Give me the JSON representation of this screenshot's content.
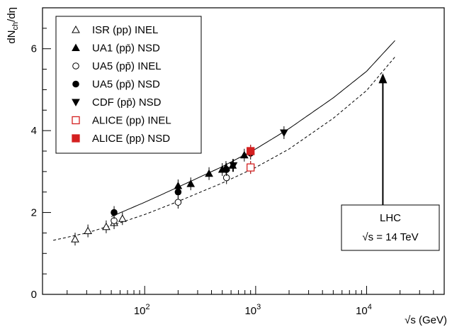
{
  "chart_data": {
    "type": "scatter",
    "title": "",
    "xlabel": "√s (GeV)",
    "ylabel": "dN_ch/dη",
    "xscale": "log",
    "xlim": [
      12,
      50000
    ],
    "ylim": [
      0,
      7
    ],
    "x_tick_labels": [
      "10^2",
      "10^3",
      "10^4"
    ],
    "y_tick_labels": [
      "0",
      "2",
      "4",
      "6"
    ],
    "legend_position": "top-left",
    "series": [
      {
        "name": "ISR (pp) INEL",
        "marker": "triangle-up-open",
        "color": "#000000",
        "x": [
          23.6,
          30.8,
          45,
          53,
          63
        ],
        "y": [
          1.35,
          1.55,
          1.65,
          1.75,
          1.85
        ]
      },
      {
        "name": "UA1 (pp̄) NSD",
        "marker": "triangle-up-filled",
        "color": "#000000",
        "x": [
          200,
          260,
          380,
          500,
          540,
          620,
          790,
          900
        ],
        "y": [
          2.65,
          2.7,
          2.95,
          3.05,
          3.1,
          3.15,
          3.4,
          3.5
        ]
      },
      {
        "name": "UA5 (pp̄) INEL",
        "marker": "circle-open",
        "color": "#000000",
        "x": [
          53,
          200,
          546,
          900
        ],
        "y": [
          1.8,
          2.25,
          2.85,
          3.1
        ]
      },
      {
        "name": "UA5 (pp̄) NSD",
        "marker": "circle-filled",
        "color": "#000000",
        "x": [
          53,
          200,
          546,
          900
        ],
        "y": [
          2.0,
          2.5,
          3.05,
          3.45
        ]
      },
      {
        "name": "CDF (pp̄) NSD",
        "marker": "triangle-down-filled",
        "color": "#000000",
        "x": [
          630,
          1800
        ],
        "y": [
          3.15,
          3.95
        ]
      },
      {
        "name": "ALICE (pp) INEL",
        "marker": "square-open",
        "color": "#d42020",
        "x": [
          900
        ],
        "y": [
          3.1
        ]
      },
      {
        "name": "ALICE (pp) NSD",
        "marker": "square-filled",
        "color": "#d42020",
        "x": [
          900
        ],
        "y": [
          3.5
        ]
      }
    ],
    "curves": [
      {
        "style": "solid",
        "x": [
          50,
          100,
          200,
          500,
          1000,
          2000,
          5000,
          10000,
          18000
        ],
        "y": [
          1.9,
          2.25,
          2.62,
          3.12,
          3.55,
          4.05,
          4.8,
          5.45,
          6.2
        ]
      },
      {
        "style": "dashed",
        "x": [
          15,
          30,
          60,
          100,
          200,
          500,
          1000,
          2000,
          5000,
          10000,
          18000
        ],
        "y": [
          1.32,
          1.5,
          1.75,
          1.95,
          2.27,
          2.72,
          3.1,
          3.55,
          4.3,
          4.98,
          5.8
        ]
      }
    ],
    "annotation": {
      "line1": "LHC",
      "line2": "√s = 14 TeV",
      "arrow_x": 14000,
      "arrow_y_from": 2.05,
      "arrow_y_to": 5.4
    }
  }
}
